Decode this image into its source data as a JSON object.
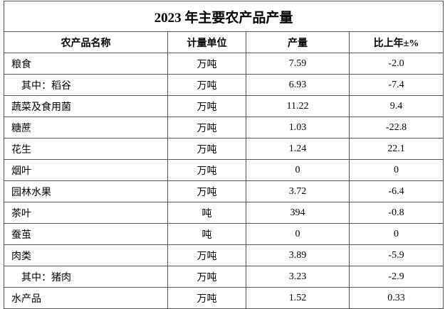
{
  "table": {
    "title": "2023 年主要农产品产量",
    "headers": [
      "农产品名称",
      "计量单位",
      "产量",
      "比上年±%"
    ],
    "rows": [
      [
        "粮食",
        "万吨",
        "7.59",
        "-2.0"
      ],
      [
        "其中：稻谷",
        "万吨",
        "6.93",
        "-7.4"
      ],
      [
        "蔬菜及食用菌",
        "万吨",
        "11.22",
        "9.4"
      ],
      [
        "糖蔗",
        "万吨",
        "1.03",
        "-22.8"
      ],
      [
        "花生",
        "万吨",
        "1.24",
        "22.1"
      ],
      [
        "烟叶",
        "万吨",
        "0",
        "0"
      ],
      [
        "园林水果",
        "万吨",
        "3.72",
        "-6.4"
      ],
      [
        "茶叶",
        "吨",
        "394",
        "-0.8"
      ],
      [
        "蚕茧",
        "吨",
        "0",
        "0"
      ],
      [
        "肉类",
        "万吨",
        "3.89",
        "-5.9"
      ],
      [
        "其中：猪肉",
        "万吨",
        "3.23",
        "-2.9"
      ],
      [
        "水产品",
        "万吨",
        "1.52",
        "0.33"
      ]
    ]
  }
}
